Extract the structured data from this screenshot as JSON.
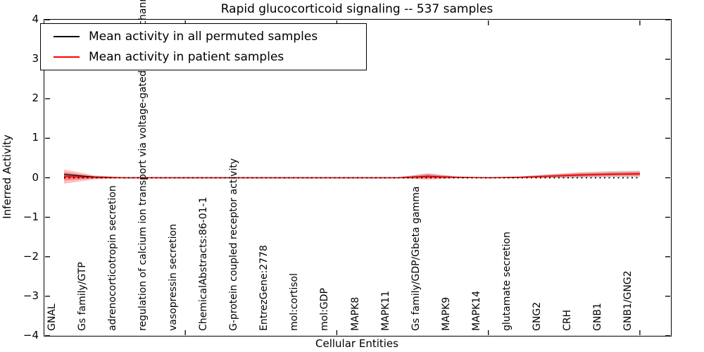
{
  "title": "Rapid glucocorticoid signaling -- 537 samples",
  "axes": {
    "ylabel": "Inferred Activity",
    "xlabel": "Cellular Entities",
    "yticks": [
      "4",
      "3",
      "2",
      "1",
      "0",
      "−1",
      "−2",
      "−3",
      "−4"
    ]
  },
  "legend": {
    "items": [
      {
        "label": "Mean activity in all permuted samples",
        "color": "#000000"
      },
      {
        "label": "Mean activity in patient samples",
        "color": "#ff0000"
      }
    ]
  },
  "chart_data": {
    "type": "line",
    "title": "Rapid glucocorticoid signaling -- 537 samples",
    "xlabel": "Cellular Entities",
    "ylabel": "Inferred Activity",
    "ylim": [
      -4,
      4
    ],
    "grid": false,
    "legend_position": "upper left",
    "categories": [
      "GNAL",
      "Gs family/GTP",
      "adrenocorticotropin secretion",
      "regulation of calcium ion transport via voltage-gated calcium channel",
      "vasopressin secretion",
      "ChemicalAbstracts:86-01-1",
      "G-protein coupled receptor activity",
      "EntrezGene:2778",
      "mol:cortisol",
      "mol:GDP",
      "MAPK8",
      "MAPK11",
      "Gs family/GDP/Gbeta gamma",
      "MAPK9",
      "MAPK14",
      "glutamate secretion",
      "GNG2",
      "CRH",
      "GNB1",
      "GNB1/GNG2"
    ],
    "xticks_major_at": [
      5,
      10,
      15,
      20
    ],
    "series": [
      {
        "name": "Mean activity in all permuted samples",
        "color": "#000000",
        "style": "solid",
        "width": 1.2,
        "values": [
          0.08,
          0.02,
          0.0,
          0.0,
          0.0,
          0.0,
          0.0,
          0.0,
          0.0,
          0.0,
          0.0,
          0.0,
          0.04,
          0.01,
          0.0,
          0.01,
          0.04,
          0.07,
          0.09,
          0.1
        ]
      },
      {
        "name": "Mean activity in patient samples",
        "color": "#ff0000",
        "style": "solid",
        "width": 1.6,
        "values": [
          0.03,
          0.01,
          0.0,
          0.0,
          0.0,
          0.0,
          0.0,
          0.0,
          0.0,
          0.0,
          0.0,
          0.0,
          0.03,
          0.01,
          0.0,
          0.01,
          0.04,
          0.07,
          0.09,
          0.1
        ]
      },
      {
        "name": "zero-reference",
        "color": "#000000",
        "style": "dotted",
        "width": 1.8,
        "values": [
          0,
          0,
          0,
          0,
          0,
          0,
          0,
          0,
          0,
          0,
          0,
          0,
          0,
          0,
          0,
          0,
          0,
          0,
          0,
          0
        ]
      }
    ],
    "bands": [
      {
        "name": "permuted-std-band",
        "color": "rgba(120,120,120,0.30)",
        "center_series": 0,
        "halfwidths": [
          0.06,
          0.02,
          0.01,
          0.01,
          0.01,
          0.01,
          0.01,
          0.01,
          0.01,
          0.01,
          0.01,
          0.01,
          0.06,
          0.02,
          0.01,
          0.02,
          0.05,
          0.07,
          0.08,
          0.08
        ]
      },
      {
        "name": "patient-std-band",
        "color": "rgba(255,0,0,0.25)",
        "center_series": 1,
        "halfwidths": [
          0.18,
          0.05,
          0.01,
          0.01,
          0.01,
          0.01,
          0.01,
          0.01,
          0.01,
          0.01,
          0.01,
          0.01,
          0.08,
          0.02,
          0.01,
          0.02,
          0.04,
          0.05,
          0.05,
          0.06
        ]
      },
      {
        "name": "patient-std-inner-band",
        "color": "rgba(255,0,0,0.30)",
        "center_series": 1,
        "halfwidths": [
          0.1,
          0.03,
          0.01,
          0.01,
          0.01,
          0.01,
          0.01,
          0.01,
          0.01,
          0.01,
          0.01,
          0.01,
          0.04,
          0.01,
          0.01,
          0.01,
          0.02,
          0.03,
          0.03,
          0.03
        ]
      }
    ]
  }
}
